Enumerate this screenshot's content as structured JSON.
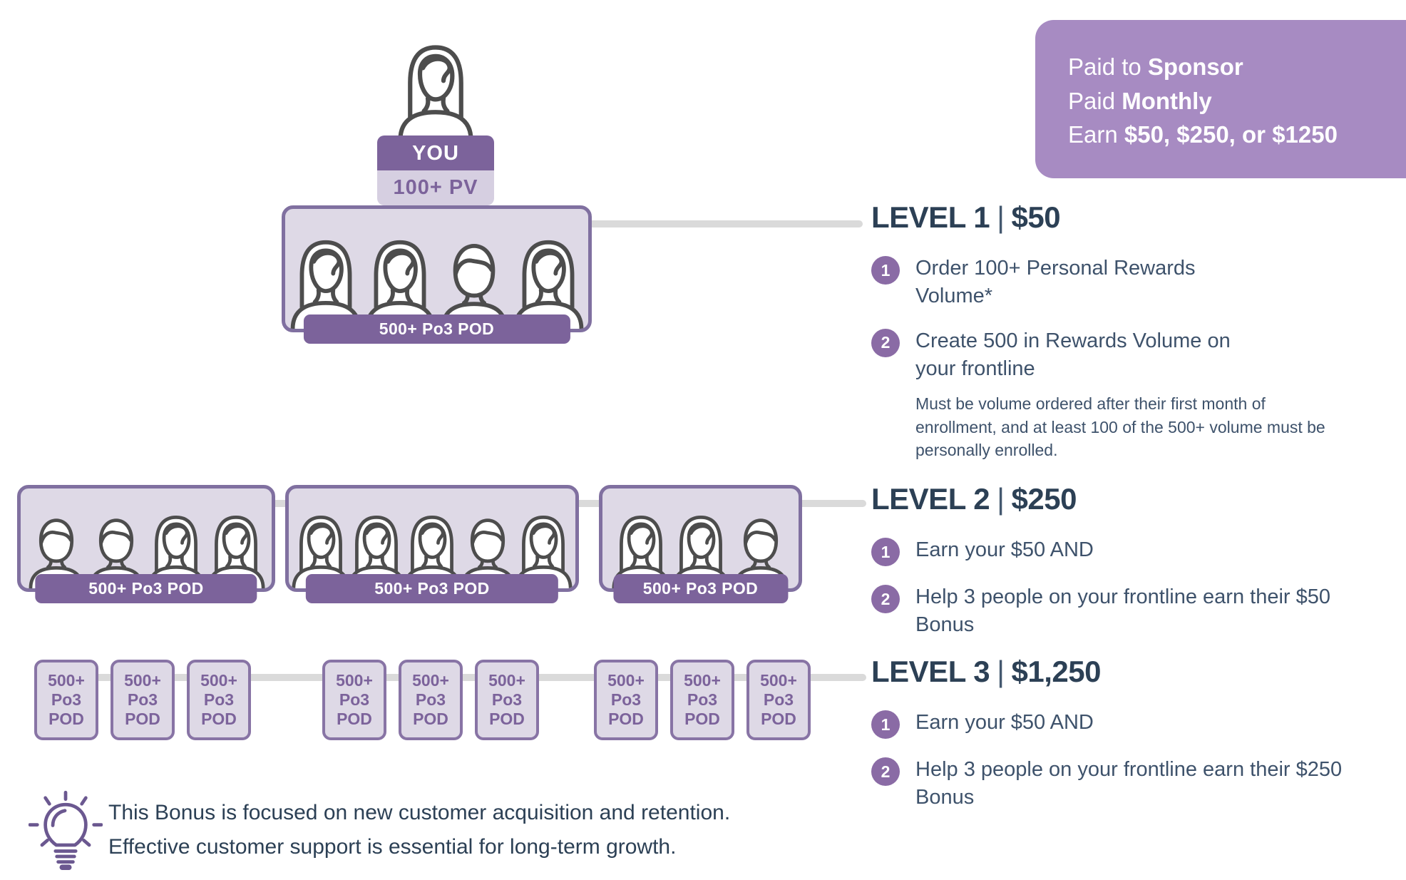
{
  "banner": {
    "lines": [
      {
        "normal": "Paid to ",
        "bold": "Sponsor"
      },
      {
        "normal": "Paid ",
        "bold": "Monthly"
      },
      {
        "normal": "Earn ",
        "bold": "$50, $250, or $1250"
      }
    ]
  },
  "you": {
    "label": "YOU",
    "volume": "100+ PV",
    "icon": "woman"
  },
  "diagram": {
    "level1_pods": [
      {
        "label": "500+ Po3 POD",
        "people": [
          "woman",
          "woman",
          "man",
          "woman"
        ]
      }
    ],
    "level2_pods": [
      {
        "label": "500+ Po3 POD",
        "people": [
          "man",
          "man",
          "woman",
          "woman"
        ]
      },
      {
        "label": "500+ Po3 POD",
        "people": [
          "woman",
          "woman",
          "woman",
          "man",
          "woman"
        ]
      },
      {
        "label": "500+ Po3 POD",
        "people": [
          "woman",
          "woman",
          "man"
        ]
      }
    ],
    "level3_groups": [
      {
        "cards": [
          "500+ Po3 POD",
          "500+ Po3 POD",
          "500+ Po3 POD"
        ]
      },
      {
        "cards": [
          "500+ Po3 POD",
          "500+ Po3 POD",
          "500+ Po3 POD"
        ]
      },
      {
        "cards": [
          "500+ Po3 POD",
          "500+ Po3 POD",
          "500+ Po3 POD"
        ]
      }
    ]
  },
  "levels": [
    {
      "heading": {
        "name": "LEVEL 1",
        "separator": "|",
        "amount": "$50"
      },
      "items": [
        {
          "number": "1",
          "text": "Order 100+ Personal Rewards Volume*"
        },
        {
          "number": "2",
          "text": "Create 500 in Rewards Volume on your frontline",
          "note": "Must be volume ordered after their first month of enrollment, and at least 100 of the 500+ volume must be personally enrolled."
        }
      ]
    },
    {
      "heading": {
        "name": "LEVEL 2",
        "separator": "|",
        "amount": "$250"
      },
      "items": [
        {
          "number": "1",
          "text": "Earn your $50 AND"
        },
        {
          "number": "2",
          "text": "Help 3 people on your frontline earn their $50 Bonus"
        }
      ]
    },
    {
      "heading": {
        "name": "LEVEL 3",
        "separator": "|",
        "amount": "$1,250"
      },
      "items": [
        {
          "number": "1",
          "text": "Earn your $50 AND"
        },
        {
          "number": "2",
          "text": "Help 3 people on your frontline earn their $250 Bonus"
        }
      ]
    }
  ],
  "footnote": {
    "icon": "lightbulb",
    "lines": [
      "This Bonus is focused on new customer acquisition and retention.",
      "Effective customer support is essential for long-term growth."
    ]
  },
  "colors": {
    "banner_purple": "#a78bc2",
    "band_purple": "#7c639b",
    "pod_fill": "#ded9e6",
    "pod_border": "#8070a0",
    "badge_purple": "#8a6ba5",
    "heading_navy": "#2c4055",
    "body_navy": "#3e526b",
    "connector_gray": "#dadada",
    "person_stroke": "#4d4d4d",
    "bulb_purple": "#6b5890",
    "light_band": "#d6cfe1"
  }
}
